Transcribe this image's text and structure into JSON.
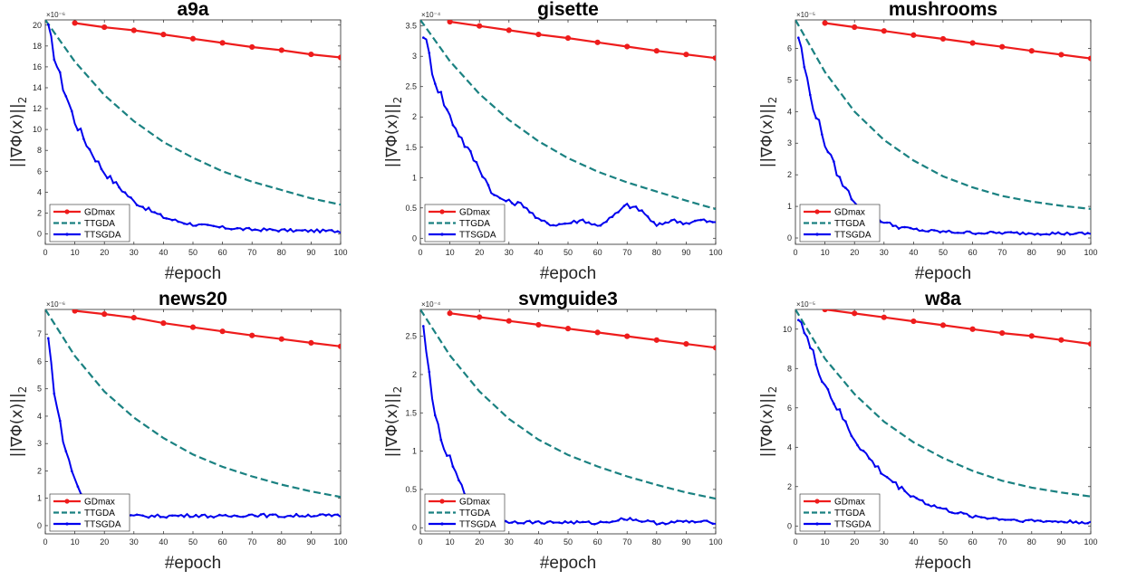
{
  "chart_data": [
    {
      "type": "line",
      "title": "a9a",
      "xlabel": "#epoch",
      "ylabel": "||∇Φ(x)||",
      "ylabel_sub": "2",
      "multiplier": "×10⁻⁶",
      "xlim": [
        0,
        100
      ],
      "ylim": [
        -1,
        20.5
      ],
      "xticks": [
        "0",
        "10",
        "20",
        "30",
        "40",
        "50",
        "60",
        "70",
        "80",
        "90",
        "100"
      ],
      "yticks": [
        "0",
        "2",
        "4",
        "6",
        "8",
        "10",
        "12",
        "14",
        "16",
        "18",
        "20"
      ],
      "legend_position": "bottom-left",
      "series": [
        {
          "name": "GDmax",
          "color": "#ee1c1c",
          "style": "solid-marker",
          "x": [
            10,
            20,
            30,
            40,
            50,
            60,
            70,
            80,
            90,
            100
          ],
          "y": [
            20.2,
            19.8,
            19.5,
            19.1,
            18.7,
            18.3,
            17.9,
            17.6,
            17.2,
            16.9
          ]
        },
        {
          "name": "TTGDA",
          "color": "#1a8181",
          "style": "dashed",
          "x": [
            0,
            10,
            20,
            30,
            40,
            50,
            60,
            70,
            80,
            90,
            100
          ],
          "y": [
            20.5,
            16.5,
            13.3,
            10.8,
            8.8,
            7.3,
            6.0,
            5.0,
            4.2,
            3.4,
            2.8
          ]
        },
        {
          "name": "TTSGDA",
          "color": "#0000ee",
          "style": "noisy",
          "x": [
            1,
            5,
            10,
            15,
            20,
            25,
            30,
            35,
            40,
            45,
            50,
            55,
            60,
            65,
            70,
            75,
            80,
            85,
            90,
            95,
            100
          ],
          "y": [
            19.5,
            15.0,
            10.8,
            8.1,
            5.9,
            4.5,
            3.1,
            2.3,
            1.6,
            1.2,
            0.9,
            0.75,
            0.6,
            0.5,
            0.4,
            0.4,
            0.35,
            0.3,
            0.3,
            0.28,
            0.25
          ]
        }
      ]
    },
    {
      "type": "line",
      "title": "gisette",
      "xlabel": "#epoch",
      "ylabel": "||∇Φ(x)||",
      "ylabel_sub": "2",
      "multiplier": "×10⁻⁴",
      "xlim": [
        0,
        100
      ],
      "ylim": [
        -0.1,
        3.6
      ],
      "xticks": [
        "0",
        "10",
        "20",
        "30",
        "40",
        "50",
        "60",
        "70",
        "80",
        "90",
        "100"
      ],
      "yticks": [
        "0",
        "0.5",
        "1",
        "1.5",
        "2",
        "2.5",
        "3",
        "3.5"
      ],
      "legend_position": "bottom-left",
      "series": [
        {
          "name": "GDmax",
          "color": "#ee1c1c",
          "style": "solid-marker",
          "x": [
            10,
            20,
            30,
            40,
            50,
            60,
            70,
            80,
            90,
            100
          ],
          "y": [
            3.57,
            3.5,
            3.43,
            3.36,
            3.3,
            3.23,
            3.16,
            3.09,
            3.03,
            2.97
          ]
        },
        {
          "name": "TTGDA",
          "color": "#1a8181",
          "style": "dashed",
          "x": [
            0,
            10,
            20,
            30,
            40,
            50,
            60,
            70,
            80,
            90,
            100
          ],
          "y": [
            3.6,
            2.92,
            2.38,
            1.95,
            1.6,
            1.32,
            1.1,
            0.92,
            0.77,
            0.62,
            0.48
          ]
        },
        {
          "name": "TTSGDA",
          "color": "#0000ee",
          "style": "noisy",
          "x": [
            1,
            5,
            10,
            15,
            20,
            25,
            30,
            35,
            40,
            45,
            50,
            55,
            60,
            65,
            70,
            75,
            80,
            85,
            90,
            95,
            100
          ],
          "y": [
            3.4,
            2.6,
            2.0,
            1.55,
            1.15,
            0.7,
            0.6,
            0.55,
            0.3,
            0.22,
            0.25,
            0.3,
            0.2,
            0.35,
            0.55,
            0.45,
            0.2,
            0.3,
            0.25,
            0.3,
            0.25
          ]
        }
      ]
    },
    {
      "type": "line",
      "title": "mushrooms",
      "xlabel": "#epoch",
      "ylabel": "||∇Φ(x)||",
      "ylabel_sub": "2",
      "multiplier": "×10⁻⁵",
      "xlim": [
        0,
        100
      ],
      "ylim": [
        -0.2,
        6.9
      ],
      "xticks": [
        "0",
        "10",
        "20",
        "30",
        "40",
        "50",
        "60",
        "70",
        "80",
        "90",
        "100"
      ],
      "yticks": [
        "0",
        "1",
        "2",
        "3",
        "4",
        "5",
        "6"
      ],
      "legend_position": "bottom-left",
      "series": [
        {
          "name": "GDmax",
          "color": "#ee1c1c",
          "style": "solid-marker",
          "x": [
            10,
            20,
            30,
            40,
            50,
            60,
            70,
            80,
            90,
            100
          ],
          "y": [
            6.8,
            6.67,
            6.55,
            6.42,
            6.3,
            6.17,
            6.05,
            5.92,
            5.8,
            5.68
          ]
        },
        {
          "name": "TTGDA",
          "color": "#1a8181",
          "style": "dashed",
          "x": [
            0,
            10,
            20,
            30,
            40,
            50,
            60,
            70,
            80,
            90,
            100
          ],
          "y": [
            6.9,
            5.25,
            4.0,
            3.1,
            2.45,
            1.95,
            1.6,
            1.33,
            1.15,
            1.02,
            0.92
          ]
        },
        {
          "name": "TTSGDA",
          "color": "#0000ee",
          "style": "noisy",
          "x": [
            1,
            5,
            10,
            15,
            20,
            25,
            30,
            35,
            40,
            45,
            50,
            55,
            60,
            65,
            70,
            75,
            80,
            85,
            90,
            95,
            100
          ],
          "y": [
            6.4,
            4.5,
            3.0,
            1.85,
            1.15,
            0.78,
            0.5,
            0.35,
            0.27,
            0.22,
            0.2,
            0.18,
            0.17,
            0.16,
            0.16,
            0.15,
            0.15,
            0.15,
            0.14,
            0.14,
            0.13
          ]
        }
      ]
    },
    {
      "type": "line",
      "title": "news20",
      "xlabel": "#epoch",
      "ylabel": "||∇Φ(x)||",
      "ylabel_sub": "2",
      "multiplier": "×10⁻⁶",
      "xlim": [
        0,
        100
      ],
      "ylim": [
        -0.3,
        7.9
      ],
      "xticks": [
        "0",
        "10",
        "20",
        "30",
        "40",
        "50",
        "60",
        "70",
        "80",
        "90",
        "100"
      ],
      "yticks": [
        "0",
        "1",
        "2",
        "3",
        "4",
        "5",
        "6",
        "7"
      ],
      "legend_position": "bottom-left",
      "series": [
        {
          "name": "GDmax",
          "color": "#ee1c1c",
          "style": "solid-marker",
          "x": [
            10,
            20,
            30,
            40,
            50,
            60,
            70,
            80,
            90,
            100
          ],
          "y": [
            7.85,
            7.73,
            7.6,
            7.4,
            7.25,
            7.1,
            6.95,
            6.82,
            6.68,
            6.55
          ]
        },
        {
          "name": "TTGDA",
          "color": "#1a8181",
          "style": "dashed",
          "x": [
            0,
            10,
            20,
            30,
            40,
            50,
            60,
            70,
            80,
            90,
            100
          ],
          "y": [
            7.9,
            6.2,
            4.9,
            3.95,
            3.2,
            2.6,
            2.15,
            1.8,
            1.5,
            1.25,
            1.05
          ]
        },
        {
          "name": "TTSGDA",
          "color": "#0000ee",
          "style": "noisy",
          "x": [
            1,
            3,
            5,
            7,
            10,
            12,
            15,
            20,
            25,
            30,
            40,
            50,
            60,
            70,
            80,
            90,
            100
          ],
          "y": [
            6.8,
            5.0,
            3.7,
            2.7,
            1.7,
            1.2,
            0.6,
            0.35,
            0.33,
            0.35,
            0.35,
            0.38,
            0.33,
            0.4,
            0.35,
            0.38,
            0.35
          ]
        }
      ]
    },
    {
      "type": "line",
      "title": "svmguide3",
      "xlabel": "#epoch",
      "ylabel": "||∇Φ(x)||",
      "ylabel_sub": "2",
      "multiplier": "×10⁻⁴",
      "xlim": [
        0,
        100
      ],
      "ylim": [
        -0.08,
        2.85
      ],
      "xticks": [
        "0",
        "10",
        "20",
        "30",
        "40",
        "50",
        "60",
        "70",
        "80",
        "90",
        "100"
      ],
      "yticks": [
        "0",
        "0.5",
        "1",
        "1.5",
        "2",
        "2.5"
      ],
      "legend_position": "bottom-left",
      "series": [
        {
          "name": "GDmax",
          "color": "#ee1c1c",
          "style": "solid-marker",
          "x": [
            10,
            20,
            30,
            40,
            50,
            60,
            70,
            80,
            90,
            100
          ],
          "y": [
            2.8,
            2.75,
            2.7,
            2.65,
            2.6,
            2.55,
            2.5,
            2.45,
            2.4,
            2.35
          ]
        },
        {
          "name": "TTGDA",
          "color": "#1a8181",
          "style": "dashed",
          "x": [
            0,
            10,
            20,
            30,
            40,
            50,
            60,
            70,
            80,
            90,
            100
          ],
          "y": [
            2.85,
            2.25,
            1.78,
            1.42,
            1.15,
            0.95,
            0.8,
            0.67,
            0.56,
            0.46,
            0.38
          ]
        },
        {
          "name": "TTSGDA",
          "color": "#0000ee",
          "style": "noisy",
          "x": [
            1,
            3,
            5,
            7,
            10,
            12,
            15,
            20,
            25,
            30,
            40,
            50,
            60,
            70,
            80,
            90,
            100
          ],
          "y": [
            2.57,
            2.0,
            1.5,
            1.1,
            0.9,
            0.7,
            0.45,
            0.15,
            0.1,
            0.08,
            0.07,
            0.07,
            0.06,
            0.12,
            0.06,
            0.08,
            0.07
          ]
        }
      ]
    },
    {
      "type": "line",
      "title": "w8a",
      "xlabel": "#epoch",
      "ylabel": "||∇Φ(x)||",
      "ylabel_sub": "2",
      "multiplier": "×10⁻⁵",
      "xlim": [
        0,
        100
      ],
      "ylim": [
        -0.4,
        11.0
      ],
      "xticks": [
        "0",
        "10",
        "20",
        "30",
        "40",
        "50",
        "60",
        "70",
        "80",
        "90",
        "100"
      ],
      "yticks": [
        "0",
        "2",
        "4",
        "6",
        "8",
        "10"
      ],
      "legend_position": "bottom-left",
      "series": [
        {
          "name": "GDmax",
          "color": "#ee1c1c",
          "style": "solid-marker",
          "x": [
            10,
            20,
            30,
            40,
            50,
            60,
            70,
            80,
            90,
            100
          ],
          "y": [
            11.0,
            10.8,
            10.6,
            10.4,
            10.2,
            10.0,
            9.8,
            9.65,
            9.45,
            9.25
          ]
        },
        {
          "name": "TTGDA",
          "color": "#1a8181",
          "style": "dashed",
          "x": [
            0,
            10,
            20,
            30,
            40,
            50,
            60,
            70,
            80,
            90,
            100
          ],
          "y": [
            11.0,
            8.5,
            6.7,
            5.3,
            4.25,
            3.45,
            2.8,
            2.3,
            1.95,
            1.7,
            1.5
          ]
        },
        {
          "name": "TTSGDA",
          "color": "#0000ee",
          "style": "noisy",
          "x": [
            1,
            5,
            10,
            15,
            20,
            25,
            30,
            35,
            40,
            45,
            50,
            55,
            60,
            65,
            70,
            75,
            80,
            85,
            90,
            95,
            100
          ],
          "y": [
            10.8,
            9.0,
            7.2,
            5.7,
            4.4,
            3.4,
            2.6,
            2.0,
            1.5,
            1.1,
            0.85,
            0.65,
            0.5,
            0.42,
            0.35,
            0.3,
            0.27,
            0.24,
            0.22,
            0.2,
            0.18
          ]
        }
      ]
    }
  ]
}
